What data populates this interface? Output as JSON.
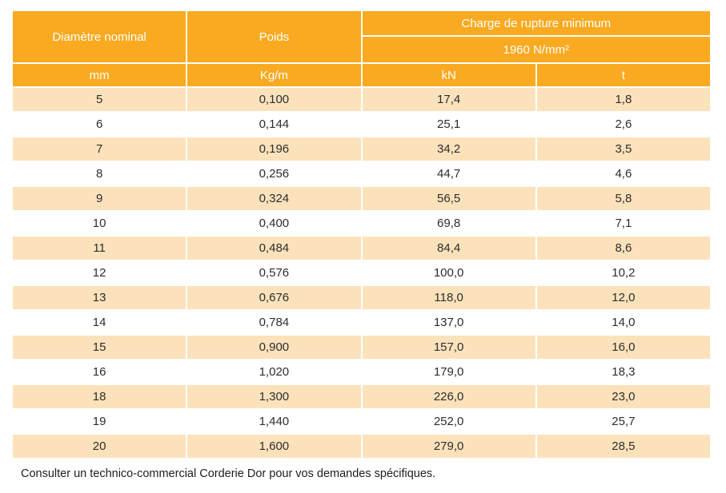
{
  "table": {
    "header": {
      "diameter_label": "Diamètre nominal",
      "weight_label": "Poids",
      "breaking_load_label": "Charge de rupture minimum",
      "grade_label": "1960 N/mm²",
      "unit_mm": "mm",
      "unit_kgm": "Kg/m",
      "unit_kn": "kN",
      "unit_t": "t"
    },
    "rows": [
      [
        "5",
        "0,100",
        "17,4",
        "1,8"
      ],
      [
        "6",
        "0,144",
        "25,1",
        "2,6"
      ],
      [
        "7",
        "0,196",
        "34,2",
        "3,5"
      ],
      [
        "8",
        "0,256",
        "44,7",
        "4,6"
      ],
      [
        "9",
        "0,324",
        "56,5",
        "5,8"
      ],
      [
        "10",
        "0,400",
        "69,8",
        "7,1"
      ],
      [
        "11",
        "0,484",
        "84,4",
        "8,6"
      ],
      [
        "12",
        "0,576",
        "100,0",
        "10,2"
      ],
      [
        "13",
        "0,676",
        "118,0",
        "12,0"
      ],
      [
        "14",
        "0,784",
        "137,0",
        "14,0"
      ],
      [
        "15",
        "0,900",
        "157,0",
        "16,0"
      ],
      [
        "16",
        "1,020",
        "179,0",
        "18,3"
      ],
      [
        "18",
        "1,300",
        "226,0",
        "23,0"
      ],
      [
        "19",
        "1,440",
        "252,0",
        "25,7"
      ],
      [
        "20",
        "1,600",
        "279,0",
        "28,5"
      ]
    ]
  },
  "footer": {
    "note": "Consulter un technico-commercial Corderie Dor pour vos demandes spécifiques."
  },
  "colors": {
    "header_orange": "#F9AA20",
    "row_peach": "#FCE2BB",
    "row_white": "#FFFFFF",
    "text_dark": "#2D2D2D",
    "header_text": "#FFFFFF"
  },
  "chart_data": {
    "type": "table",
    "title": "Charge de rupture minimum 1960 N/mm²",
    "columns": [
      "Diamètre nominal (mm)",
      "Poids (Kg/m)",
      "kN",
      "t"
    ],
    "rows": [
      [
        5,
        0.1,
        17.4,
        1.8
      ],
      [
        6,
        0.144,
        25.1,
        2.6
      ],
      [
        7,
        0.196,
        34.2,
        3.5
      ],
      [
        8,
        0.256,
        44.7,
        4.6
      ],
      [
        9,
        0.324,
        56.5,
        5.8
      ],
      [
        10,
        0.4,
        69.8,
        7.1
      ],
      [
        11,
        0.484,
        84.4,
        8.6
      ],
      [
        12,
        0.576,
        100.0,
        10.2
      ],
      [
        13,
        0.676,
        118.0,
        12.0
      ],
      [
        14,
        0.784,
        137.0,
        14.0
      ],
      [
        15,
        0.9,
        157.0,
        16.0
      ],
      [
        16,
        1.02,
        179.0,
        18.3
      ],
      [
        18,
        1.3,
        226.0,
        23.0
      ],
      [
        19,
        1.44,
        252.0,
        25.7
      ],
      [
        20,
        1.6,
        279.0,
        28.5
      ]
    ]
  }
}
